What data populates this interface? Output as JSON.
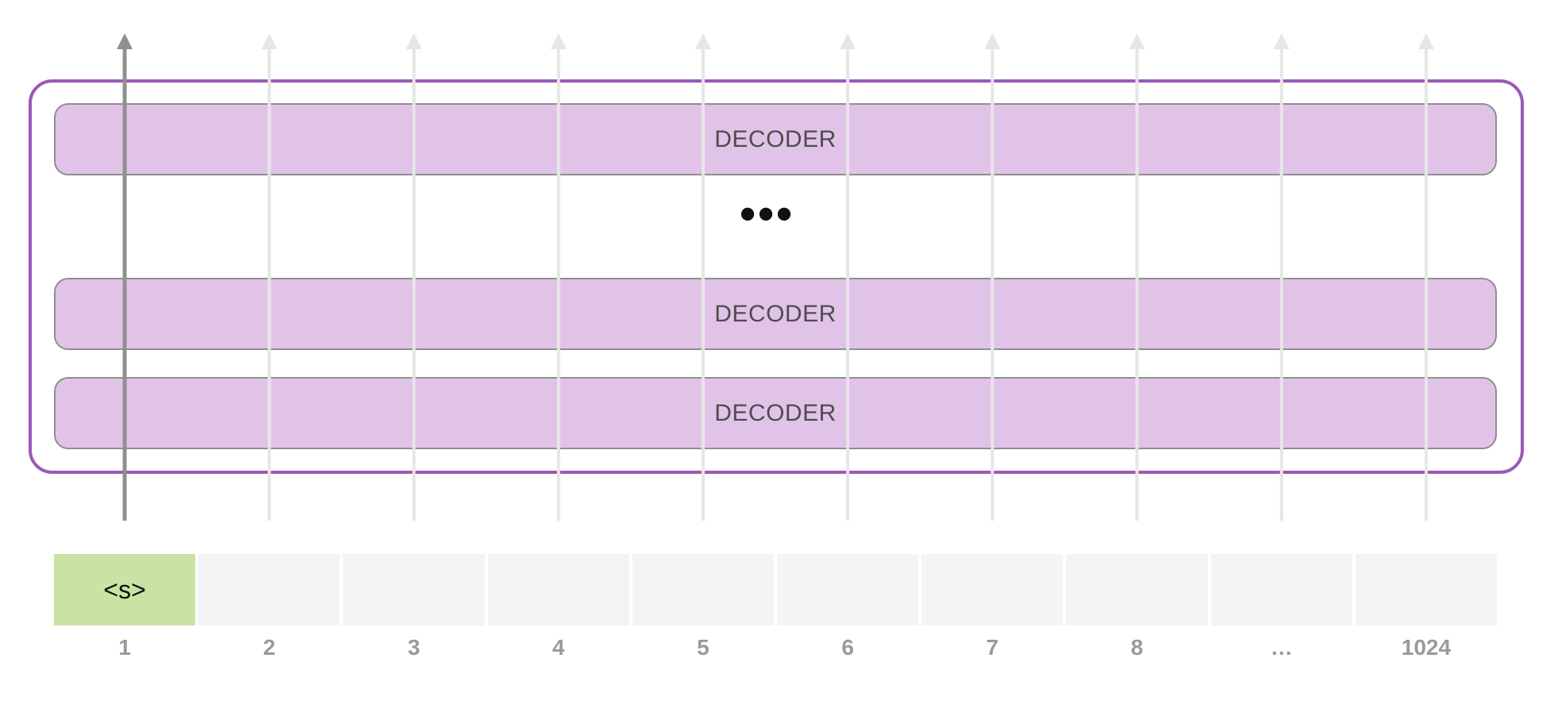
{
  "decoder_stack": {
    "layers": [
      {
        "label": "DECODER"
      },
      {
        "label": "DECODER"
      },
      {
        "label": "DECODER"
      }
    ],
    "ellipsis": "•••"
  },
  "tokens": [
    {
      "text": "<s>",
      "active": true
    },
    {
      "text": "",
      "active": false
    },
    {
      "text": "",
      "active": false
    },
    {
      "text": "",
      "active": false
    },
    {
      "text": "",
      "active": false
    },
    {
      "text": "",
      "active": false
    },
    {
      "text": "",
      "active": false
    },
    {
      "text": "",
      "active": false
    },
    {
      "text": "",
      "active": false
    },
    {
      "text": "",
      "active": false
    }
  ],
  "positions": [
    "1",
    "2",
    "3",
    "4",
    "5",
    "6",
    "7",
    "8",
    "…",
    "1024"
  ],
  "colors": {
    "container_border": "#9b59b6",
    "decoder_fill": "#e2c3e8",
    "active_token_fill": "#c9e3a4",
    "inactive_token_fill": "#f4f4f4",
    "active_arrow": "#909090",
    "faded_arrow": "#e6e6e6"
  }
}
